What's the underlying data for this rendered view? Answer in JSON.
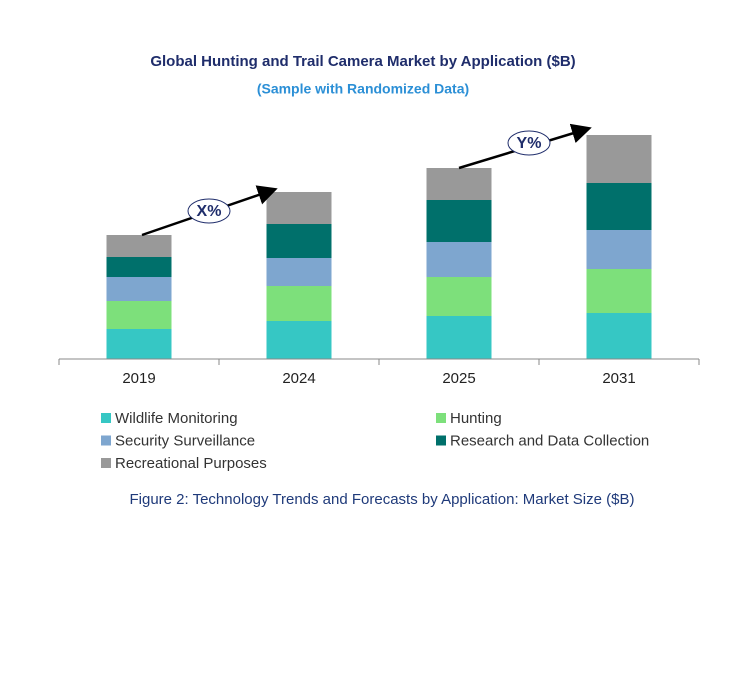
{
  "chart_data": {
    "type": "stacked_bar",
    "title": "Global Hunting and Trail Camera Market by Application ($B)",
    "subtitle": "(Sample with Randomized Data)",
    "caption": "Figure 2: Technology  Trends  and Forecasts by Application: Market Size ($B)",
    "categories": [
      "2019",
      "2024",
      "2025",
      "2031"
    ],
    "series": [
      {
        "name": "Wildlife Monitoring",
        "color": "#36c7c4",
        "values": [
          30,
          38,
          43,
          46
        ]
      },
      {
        "name": "Hunting",
        "color": "#7de07b",
        "values": [
          28,
          35,
          39,
          44
        ]
      },
      {
        "name": "Security Surveillance",
        "color": "#7ea6cf",
        "values": [
          24,
          28,
          35,
          39
        ]
      },
      {
        "name": "Research and Data Collection",
        "color": "#00706b",
        "values": [
          20,
          34,
          42,
          47
        ]
      },
      {
        "name": "Recreational Purposes",
        "color": "#999999",
        "values": [
          22,
          32,
          32,
          48
        ]
      }
    ],
    "annotations": [
      "X%",
      "Y%"
    ],
    "ylim": [
      0,
      244
    ]
  }
}
